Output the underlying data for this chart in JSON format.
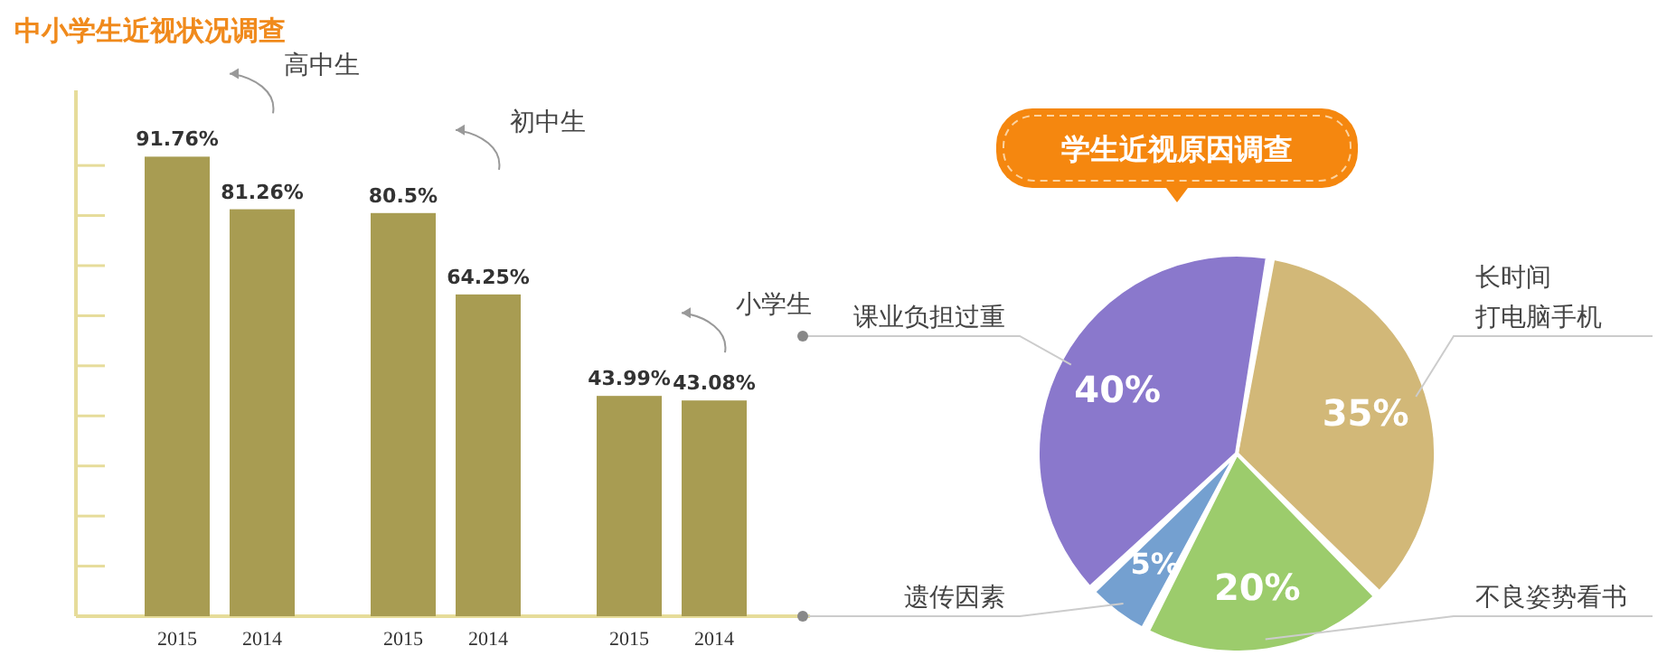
{
  "chart_data": [
    {
      "type": "bar",
      "title": "中小学生近视状况调查",
      "categories": [
        "2015",
        "2014",
        "2015",
        "2014",
        "2015",
        "2014"
      ],
      "values": [
        91.76,
        81.26,
        80.5,
        64.25,
        43.99,
        43.08
      ],
      "value_labels": [
        "91.76%",
        "81.26%",
        "80.5%",
        "64.25%",
        "43.99%",
        "43.08%"
      ],
      "color": "#a89c52",
      "ylim": [
        0,
        105
      ],
      "yticks": [
        {
          "value": 10,
          "label": null
        },
        {
          "value": 20,
          "label": null
        },
        {
          "value": 30,
          "label": null
        },
        {
          "value": 40,
          "label": null
        },
        {
          "value": 50,
          "label": null
        },
        {
          "value": 60,
          "label": null
        },
        {
          "value": 70,
          "label": null
        },
        {
          "value": 80,
          "label": null
        },
        {
          "value": 90,
          "label": null
        }
      ],
      "tick_labels": "x",
      "grid": false,
      "annotations": [
        "高中生",
        "初中生",
        "小学生"
      ]
    },
    {
      "type": "pie",
      "title": "学生近视原因调查",
      "categories": [
        "长时间打电脑手机",
        "不良姿势看书",
        "遗传因素",
        "课业负担过重"
      ],
      "values": [
        35,
        20,
        5,
        40
      ],
      "value_labels": [
        "35%",
        "20%",
        "5%",
        "40%"
      ],
      "colors": [
        "#d2b878",
        "#9ccc6c",
        "#74a0d0",
        "#8a78cc"
      ]
    }
  ]
}
